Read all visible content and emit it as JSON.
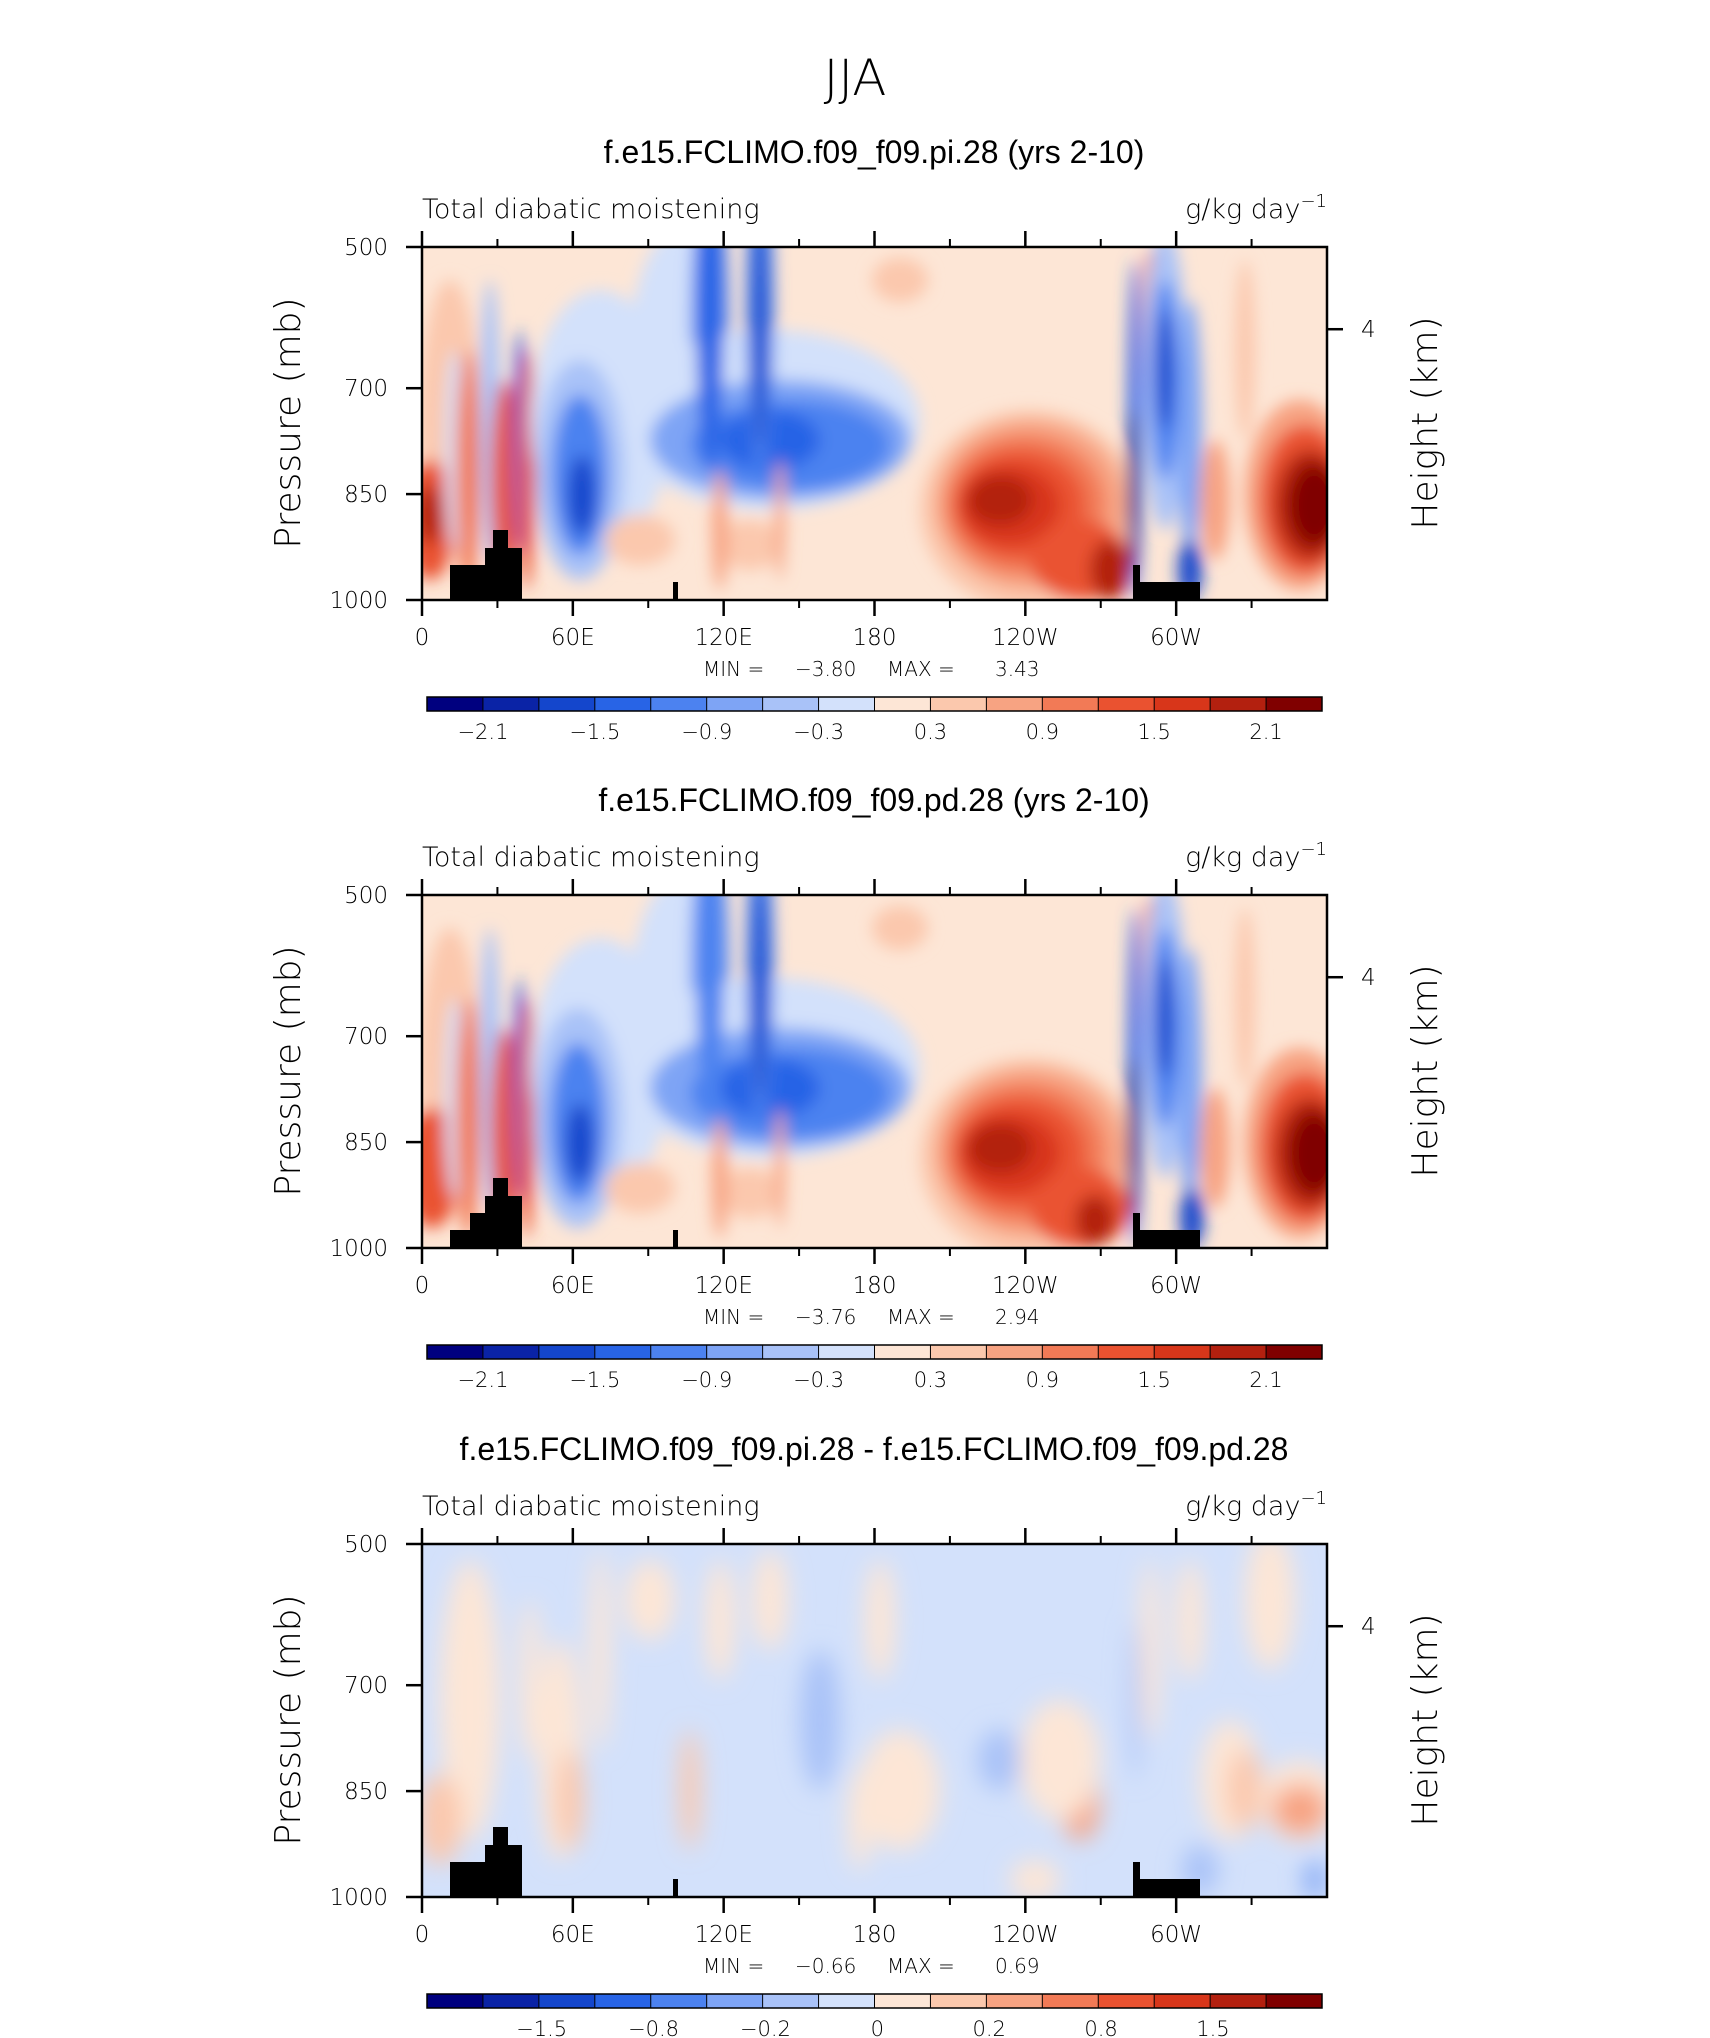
{
  "figure": {
    "title": "JJA"
  },
  "chart_data": [
    {
      "type": "heatmap",
      "title": "f.e15.FCLIMO.f09_f09.pi.28 (yrs 2-10)",
      "left_string": "Total diabatic moistening",
      "units": "g/kg day",
      "units_exponent": "−1",
      "ylabel": "Pressure (mb)",
      "ylabel_right": "Height (km)",
      "x_ticks": [
        "0",
        "60E",
        "120E",
        "180",
        "120W",
        "60W"
      ],
      "x_tick_values": [
        0,
        60,
        120,
        180,
        240,
        300
      ],
      "xlim": [
        0,
        360
      ],
      "y_ticks": [
        "500",
        "700",
        "850",
        "1000"
      ],
      "y_tick_values": [
        500,
        700,
        850,
        1000
      ],
      "ylim": [
        1000,
        500
      ],
      "y_right_ticks": [
        "4"
      ],
      "y_right_tick_values": [
        4
      ],
      "min_label": "MIN =",
      "min_value": "−3.80",
      "max_label": "MAX =",
      "max_value": "3.43",
      "colorbar_levels": [
        -2.4,
        -2.1,
        -1.8,
        -1.5,
        -1.2,
        -0.9,
        -0.6,
        -0.3,
        0,
        0.3,
        0.6,
        0.9,
        1.2,
        1.5,
        1.8,
        2.1,
        2.4
      ],
      "colorbar_labels": [
        "−2.1",
        "−1.5",
        "−0.9",
        "−0.3",
        "0.3",
        "0.9",
        "1.5",
        "2.1"
      ]
    },
    {
      "type": "heatmap",
      "title": "f.e15.FCLIMO.f09_f09.pd.28 (yrs 2-10)",
      "left_string": "Total diabatic moistening",
      "units": "g/kg day",
      "units_exponent": "−1",
      "ylabel": "Pressure (mb)",
      "ylabel_right": "Height (km)",
      "x_ticks": [
        "0",
        "60E",
        "120E",
        "180",
        "120W",
        "60W"
      ],
      "x_tick_values": [
        0,
        60,
        120,
        180,
        240,
        300
      ],
      "xlim": [
        0,
        360
      ],
      "y_ticks": [
        "500",
        "700",
        "850",
        "1000"
      ],
      "y_tick_values": [
        500,
        700,
        850,
        1000
      ],
      "ylim": [
        1000,
        500
      ],
      "y_right_ticks": [
        "4"
      ],
      "y_right_tick_values": [
        4
      ],
      "min_label": "MIN =",
      "min_value": "−3.76",
      "max_label": "MAX =",
      "max_value": "2.94",
      "colorbar_levels": [
        -2.4,
        -2.1,
        -1.8,
        -1.5,
        -1.2,
        -0.9,
        -0.6,
        -0.3,
        0,
        0.3,
        0.6,
        0.9,
        1.2,
        1.5,
        1.8,
        2.1,
        2.4
      ],
      "colorbar_labels": [
        "−2.1",
        "−1.5",
        "−0.9",
        "−0.3",
        "0.3",
        "0.9",
        "1.5",
        "2.1"
      ]
    },
    {
      "type": "heatmap",
      "title": "f.e15.FCLIMO.f09_f09.pi.28 - f.e15.FCLIMO.f09_f09.pd.28",
      "left_string": "Total diabatic moistening",
      "units": "g/kg day",
      "units_exponent": "−1",
      "ylabel": "Pressure (mb)",
      "ylabel_right": "Height (km)",
      "x_ticks": [
        "0",
        "60E",
        "120E",
        "180",
        "120W",
        "60W"
      ],
      "x_tick_values": [
        0,
        60,
        120,
        180,
        240,
        300
      ],
      "xlim": [
        0,
        360
      ],
      "y_ticks": [
        "500",
        "700",
        "850",
        "1000"
      ],
      "y_tick_values": [
        500,
        700,
        850,
        1000
      ],
      "ylim": [
        1000,
        500
      ],
      "y_right_ticks": [
        "4"
      ],
      "y_right_tick_values": [
        4
      ],
      "min_label": "MIN =",
      "min_value": "−0.66",
      "max_label": "MAX =",
      "max_value": "0.69",
      "colorbar_labels": [
        "−1.5",
        "−0.8",
        "−0.2",
        "0",
        "0.2",
        "0.8",
        "1.5"
      ]
    }
  ],
  "colors": {
    "colormap": [
      "#00007f",
      "#0a23a6",
      "#1446cc",
      "#2864e6",
      "#4c82f0",
      "#7ea4f5",
      "#a9c2f8",
      "#d3e1fb",
      "#fde6d6",
      "#fbc8ad",
      "#f7a382",
      "#f27a56",
      "#ea5230",
      "#d8361a",
      "#b3200f",
      "#800000"
    ],
    "land_mask": "#000000"
  }
}
